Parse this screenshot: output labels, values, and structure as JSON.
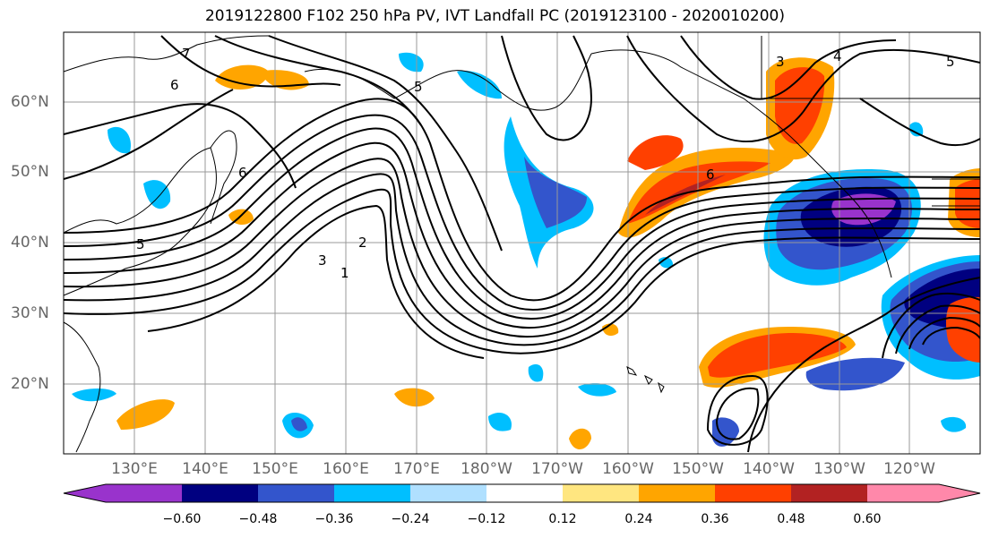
{
  "title": "2019122800 F102 250 hPa PV, IVT Landfall PC (2019123100 - 2020010200)",
  "map": {
    "lat_labels": [
      "60°N",
      "50°N",
      "40°N",
      "30°N",
      "20°N"
    ],
    "lon_labels": [
      "130°E",
      "140°E",
      "150°E",
      "160°E",
      "170°E",
      "180°W",
      "170°W",
      "160°W",
      "150°W",
      "140°W",
      "130°W",
      "120°W"
    ],
    "contour_labels": [
      "7",
      "6",
      "5",
      "5",
      "4",
      "3",
      "3",
      "2",
      "1",
      "6",
      "6",
      "5"
    ]
  },
  "colorbar": {
    "ticks": [
      "−0.60",
      "−0.48",
      "−0.36",
      "−0.24",
      "−0.12",
      "0.12",
      "0.24",
      "0.36",
      "0.48",
      "0.60"
    ],
    "colors": [
      "#9933cc",
      "#000080",
      "#3355cc",
      "#00bfff",
      "#b0e0ff",
      "#ffffff",
      "#ffe680",
      "#ffa500",
      "#ff4000",
      "#b22222",
      "#ff88aa"
    ]
  }
}
